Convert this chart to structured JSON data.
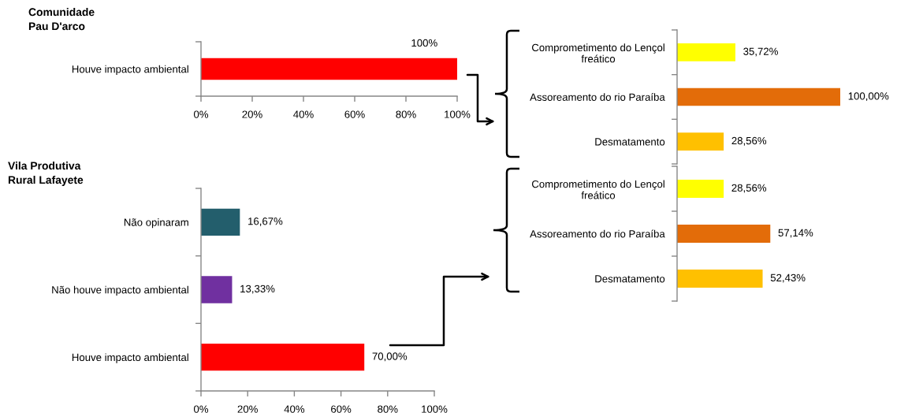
{
  "chart_data": [
    {
      "type": "bar",
      "orientation": "horizontal",
      "title": "Comunidade\nPau D'arco",
      "categories": [
        "Houve impacto ambiental"
      ],
      "values": [
        100
      ],
      "colors": [
        "#ff0000"
      ],
      "xlim": [
        0,
        100
      ],
      "xticks": [
        {
          "value": 0,
          "label": "0%"
        },
        {
          "value": 20,
          "label": "20%"
        },
        {
          "value": 40,
          "label": "40%"
        },
        {
          "value": 60,
          "label": "60%"
        },
        {
          "value": 80,
          "label": "80%"
        },
        {
          "value": 100,
          "label": "100%"
        }
      ],
      "annotations": [
        {
          "text": "100%",
          "x": 100,
          "y": "Houve impacto ambiental"
        }
      ]
    },
    {
      "type": "bar",
      "orientation": "horizontal",
      "categories": [
        "Comprometimento do Lençol\nfreático",
        "Assoreamento do rio Paraíba",
        "Desmatamento"
      ],
      "values": [
        35.72,
        100.0,
        28.56
      ],
      "colors": [
        "#ffff00",
        "#e36c09",
        "#ffc000"
      ],
      "value_labels": [
        "35,72%",
        "100,00%",
        "28,56%"
      ]
    },
    {
      "type": "bar",
      "orientation": "horizontal",
      "title": "Vila Produtiva\nRural Lafayete",
      "categories": [
        "Não opinaram",
        "Não houve impacto ambiental",
        "Houve impacto ambiental"
      ],
      "values": [
        16.67,
        13.33,
        70.0
      ],
      "colors": [
        "#235e6c",
        "#7030a0",
        "#ff0000"
      ],
      "value_labels": [
        "16,67%",
        "13,33%",
        "70,00%"
      ],
      "xlim": [
        0,
        100
      ],
      "xticks": [
        {
          "value": 0,
          "label": "0%"
        },
        {
          "value": 20,
          "label": "20%"
        },
        {
          "value": 40,
          "label": "40%"
        },
        {
          "value": 60,
          "label": "60%"
        },
        {
          "value": 80,
          "label": "80%"
        },
        {
          "value": 100,
          "label": "100%"
        }
      ]
    },
    {
      "type": "bar",
      "orientation": "horizontal",
      "categories": [
        "Comprometimento do Lençol\nfreático",
        "Assoreamento do rio Paraíba",
        "Desmatamento"
      ],
      "values": [
        28.56,
        57.14,
        52.43
      ],
      "colors": [
        "#ffff00",
        "#e36c09",
        "#ffc000"
      ],
      "value_labels": [
        "28,56%",
        "57,14%",
        "52,43%"
      ]
    }
  ]
}
